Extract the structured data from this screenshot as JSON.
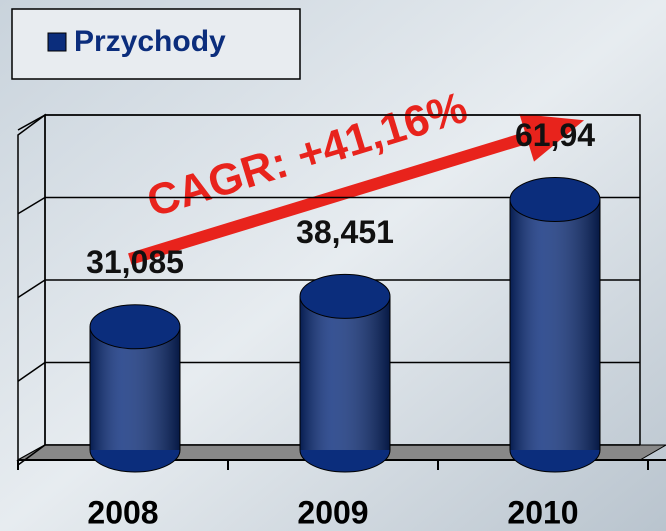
{
  "chart_data": {
    "type": "bar",
    "categories": [
      "2008",
      "2009",
      "2010"
    ],
    "series": [
      {
        "name": "Przychody",
        "color": "#0b2d7c",
        "values": [
          31.085,
          38.451,
          61.94
        ],
        "value_labels": [
          "31,085",
          "38,451",
          "61,94"
        ]
      }
    ],
    "annotation": "CAGR: +41,16%",
    "ylim": [
      0,
      80
    ],
    "yticks": [
      0,
      20,
      40,
      60,
      80
    ],
    "grid": true,
    "legend": "top-left"
  }
}
